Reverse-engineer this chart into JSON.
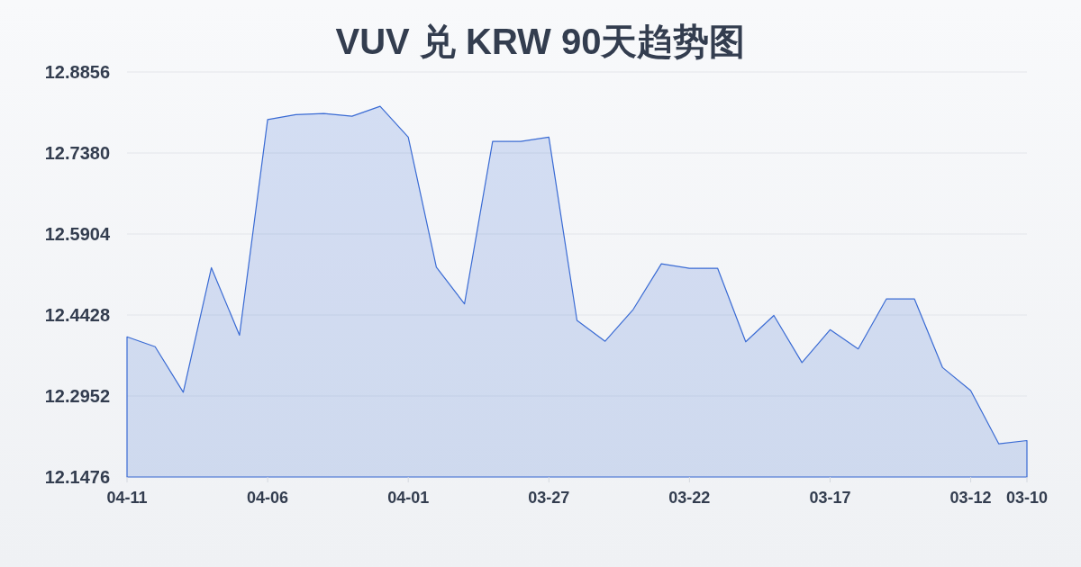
{
  "chart_data": {
    "type": "area",
    "title": "VUV 兑 KRW 90天趋势图",
    "categories": [
      "04-11",
      null,
      null,
      null,
      null,
      "04-06",
      null,
      null,
      null,
      null,
      "04-01",
      null,
      null,
      null,
      null,
      "03-27",
      null,
      null,
      null,
      null,
      "03-22",
      null,
      null,
      null,
      null,
      "03-17",
      null,
      null,
      null,
      null,
      "03-12",
      null,
      "03-10"
    ],
    "series": [
      {
        "color": "#3a6bd4",
        "values": [
          12.403,
          12.385,
          12.302,
          12.529,
          12.406,
          12.799,
          12.808,
          12.81,
          12.805,
          12.823,
          12.767,
          12.53,
          12.463,
          12.759,
          12.759,
          12.767,
          12.433,
          12.395,
          12.453,
          12.536,
          12.528,
          12.528,
          12.394,
          12.442,
          12.356,
          12.416,
          12.381,
          12.472,
          12.472,
          12.347,
          12.305,
          12.208,
          12.214
        ]
      }
    ],
    "ylim": [
      12.1476,
      12.8856
    ],
    "yticks": [
      12.1476,
      12.2952,
      12.4428,
      12.5904,
      {
        "value": 12.738,
        "label": "12.7380"
      },
      12.8856
    ],
    "grid": "y"
  }
}
